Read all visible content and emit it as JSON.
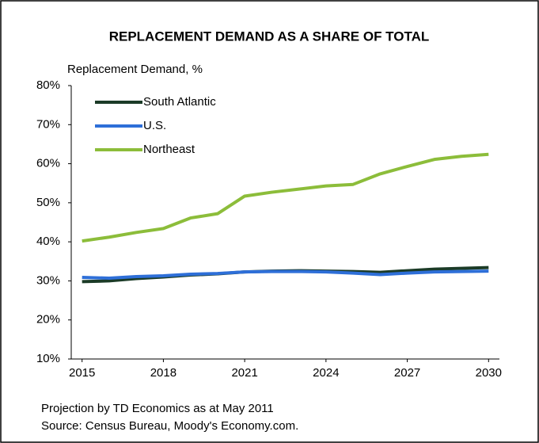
{
  "chart_data": {
    "type": "line",
    "title": "REPLACEMENT DEMAND AS A SHARE OF TOTAL",
    "y_label": "Replacement Demand, %",
    "notes": [
      "Projection by TD Economics as at May 2011",
      "Source: Census Bureau, Moody's Economy.com."
    ],
    "x": [
      2015,
      2016,
      2017,
      2018,
      2019,
      2020,
      2021,
      2022,
      2023,
      2024,
      2025,
      2026,
      2027,
      2028,
      2029,
      2030
    ],
    "series": [
      {
        "name": "South Atlantic",
        "color": "#1b3b27",
        "values": [
          29.8,
          30.0,
          30.6,
          31.0,
          31.5,
          31.8,
          32.3,
          32.5,
          32.6,
          32.5,
          32.4,
          32.2,
          32.6,
          33.0,
          33.2,
          33.4
        ]
      },
      {
        "name": "U.S.",
        "color": "#2e6fd8",
        "values": [
          30.9,
          30.7,
          31.1,
          31.3,
          31.7,
          31.9,
          32.3,
          32.4,
          32.4,
          32.3,
          32.0,
          31.6,
          32.0,
          32.3,
          32.4,
          32.5
        ]
      },
      {
        "name": "Northeast",
        "color": "#8cbd3a",
        "values": [
          40.2,
          41.2,
          42.4,
          43.4,
          46.1,
          47.2,
          51.7,
          52.7,
          53.5,
          54.3,
          54.7,
          57.4,
          59.3,
          61.1,
          61.9,
          62.4
        ]
      }
    ],
    "xlim": [
      2014.6,
      2030.4
    ],
    "xticks": [
      2015,
      2018,
      2021,
      2024,
      2027,
      2030
    ],
    "ylim": [
      10,
      80
    ],
    "yticks": [
      {
        "value": 10,
        "label": "10%"
      },
      {
        "value": 20,
        "label": "20%"
      },
      {
        "value": 30,
        "label": "30%"
      },
      {
        "value": 40,
        "label": "40%"
      },
      {
        "value": 50,
        "label": "50%"
      },
      {
        "value": 60,
        "label": "60%"
      },
      {
        "value": 70,
        "label": "70%"
      },
      {
        "value": 80,
        "label": "80%"
      }
    ],
    "grid": false
  }
}
